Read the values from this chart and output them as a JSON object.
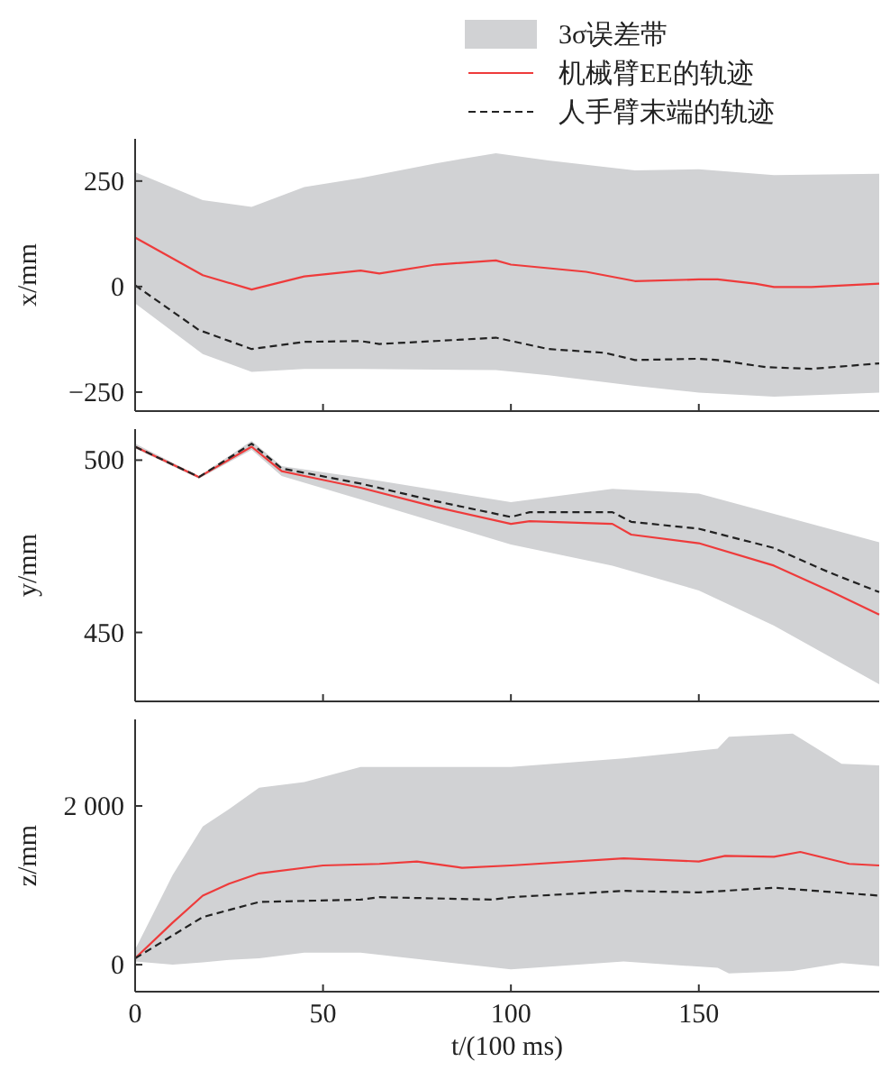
{
  "chart_data": [
    {
      "type": "line",
      "ylabel": "x/mm",
      "xlim": [
        0,
        198
      ],
      "ylim": [
        -295,
        350
      ],
      "xticks": [
        0,
        50,
        100,
        150
      ],
      "yticks": [
        {
          "value": -250,
          "label": "−250"
        },
        0,
        250
      ],
      "tick_labels": "y",
      "legend": "top",
      "grid": false,
      "series": [
        {
          "name": "3σ误差带",
          "type": "area",
          "color": "#d1d2d4",
          "x": [
            0,
            18,
            31,
            45,
            60,
            80,
            96,
            110,
            133,
            150,
            170,
            198
          ],
          "values": [
            null,
            null,
            null,
            null,
            null,
            null,
            null,
            null,
            null,
            null,
            null,
            null
          ],
          "upper": [
            271,
            205,
            189,
            236,
            257,
            292,
            316,
            299,
            275,
            278,
            264,
            267
          ],
          "lower": [
            -40,
            -160,
            -202,
            -195,
            -195,
            -197,
            -198,
            -210,
            -235,
            -251,
            -261,
            -251
          ]
        },
        {
          "name": "机械臂EE的轨迹",
          "type": "line",
          "color": "#ee3b3b",
          "line_style": "solid",
          "x": [
            0,
            18,
            31,
            45,
            60,
            65,
            80,
            96,
            100,
            120,
            133,
            150,
            155,
            165,
            170,
            180,
            198
          ],
          "values": [
            116,
            27,
            -7,
            24,
            38,
            31,
            52,
            62,
            52,
            35,
            13,
            17,
            17,
            7,
            -1,
            -1,
            7
          ]
        },
        {
          "name": "人手臂末端的轨迹",
          "type": "line",
          "color": "#222222",
          "line_style": "dashed",
          "x": [
            0,
            17,
            31,
            45,
            60,
            65,
            80,
            96,
            110,
            125,
            133,
            150,
            155,
            168,
            180,
            198
          ],
          "values": [
            3,
            -103,
            -148,
            -131,
            -129,
            -136,
            -129,
            -121,
            -148,
            -157,
            -174,
            -171,
            -174,
            -191,
            -195,
            -182
          ]
        }
      ]
    },
    {
      "type": "line",
      "ylabel": "y/mm",
      "xlim": [
        0,
        198
      ],
      "ylim": [
        430,
        509
      ],
      "xticks": [
        0,
        50,
        100,
        150
      ],
      "yticks": [
        450,
        500
      ],
      "tick_labels": "y",
      "grid": false,
      "series": [
        {
          "type": "area",
          "color": "#d1d2d4",
          "x": [
            0,
            17,
            31,
            39,
            60,
            100,
            127,
            150,
            170,
            198
          ],
          "values": [
            null,
            null,
            null,
            null,
            null,
            null,
            null,
            null,
            null,
            null
          ],
          "upper": [
            504.8,
            495.4,
            505.6,
            498.3,
            494.9,
            487.8,
            491.7,
            490.3,
            484.4,
            476.2
          ],
          "lower": [
            503.4,
            494.6,
            503,
            495.4,
            488.6,
            475.5,
            469.4,
            462.2,
            452,
            435
          ]
        },
        {
          "type": "line",
          "color": "#ee3b3b",
          "line_style": "solid",
          "x": [
            0,
            17,
            31,
            39,
            45,
            60,
            80,
            100,
            105,
            127,
            132,
            150,
            170,
            185,
            198
          ],
          "values": [
            503.9,
            495.1,
            503.9,
            496.8,
            495.4,
            492,
            486.4,
            481.5,
            482.3,
            481.5,
            478.4,
            475.9,
            469.4,
            462,
            455.2
          ]
        },
        {
          "type": "line",
          "color": "#222222",
          "line_style": "dashed",
          "x": [
            0,
            17,
            31,
            39,
            60,
            80,
            100,
            105,
            127,
            132,
            150,
            170,
            185,
            198
          ],
          "values": [
            503.9,
            495.1,
            504.8,
            497.6,
            493.2,
            488.1,
            483.5,
            484.9,
            484.9,
            482.1,
            480.1,
            474.5,
            467.3,
            461.7
          ]
        }
      ]
    },
    {
      "type": "line",
      "xlabel": "t/(100 ms)",
      "ylabel": "z/mm",
      "xlim": [
        0,
        198
      ],
      "ylim": [
        -340,
        3090
      ],
      "xticks": [
        0,
        50,
        100,
        150
      ],
      "yticks": [
        0,
        {
          "value": 2000,
          "label": "2 000"
        }
      ],
      "grid": false,
      "series": [
        {
          "type": "area",
          "color": "#d1d2d4",
          "x": [
            0,
            10,
            18,
            25,
            33,
            45,
            60,
            100,
            130,
            155,
            158,
            175,
            188,
            198
          ],
          "values": [
            null,
            null,
            null,
            null,
            null,
            null,
            null,
            null,
            null,
            null,
            null,
            null,
            null,
            null
          ],
          "upper": [
            190,
            1130,
            1740,
            1960,
            2230,
            2300,
            2490,
            2490,
            2600,
            2720,
            2870,
            2910,
            2530,
            2510
          ],
          "lower": [
            40,
            0,
            30,
            60,
            80,
            150,
            150,
            -60,
            40,
            -40,
            -110,
            -80,
            20,
            -20
          ]
        },
        {
          "type": "line",
          "color": "#ee3b3b",
          "line_style": "solid",
          "x": [
            0,
            10,
            18,
            25,
            33,
            50,
            65,
            75,
            87,
            100,
            130,
            150,
            157,
            170,
            177,
            190,
            198
          ],
          "values": [
            80,
            530,
            870,
            1020,
            1150,
            1250,
            1270,
            1300,
            1220,
            1250,
            1340,
            1300,
            1370,
            1360,
            1420,
            1270,
            1250
          ]
        },
        {
          "type": "line",
          "color": "#222222",
          "line_style": "dashed",
          "x": [
            0,
            18,
            33,
            60,
            65,
            95,
            100,
            130,
            150,
            170,
            198
          ],
          "values": [
            80,
            600,
            790,
            820,
            850,
            820,
            850,
            930,
            910,
            970,
            870
          ]
        }
      ]
    }
  ]
}
